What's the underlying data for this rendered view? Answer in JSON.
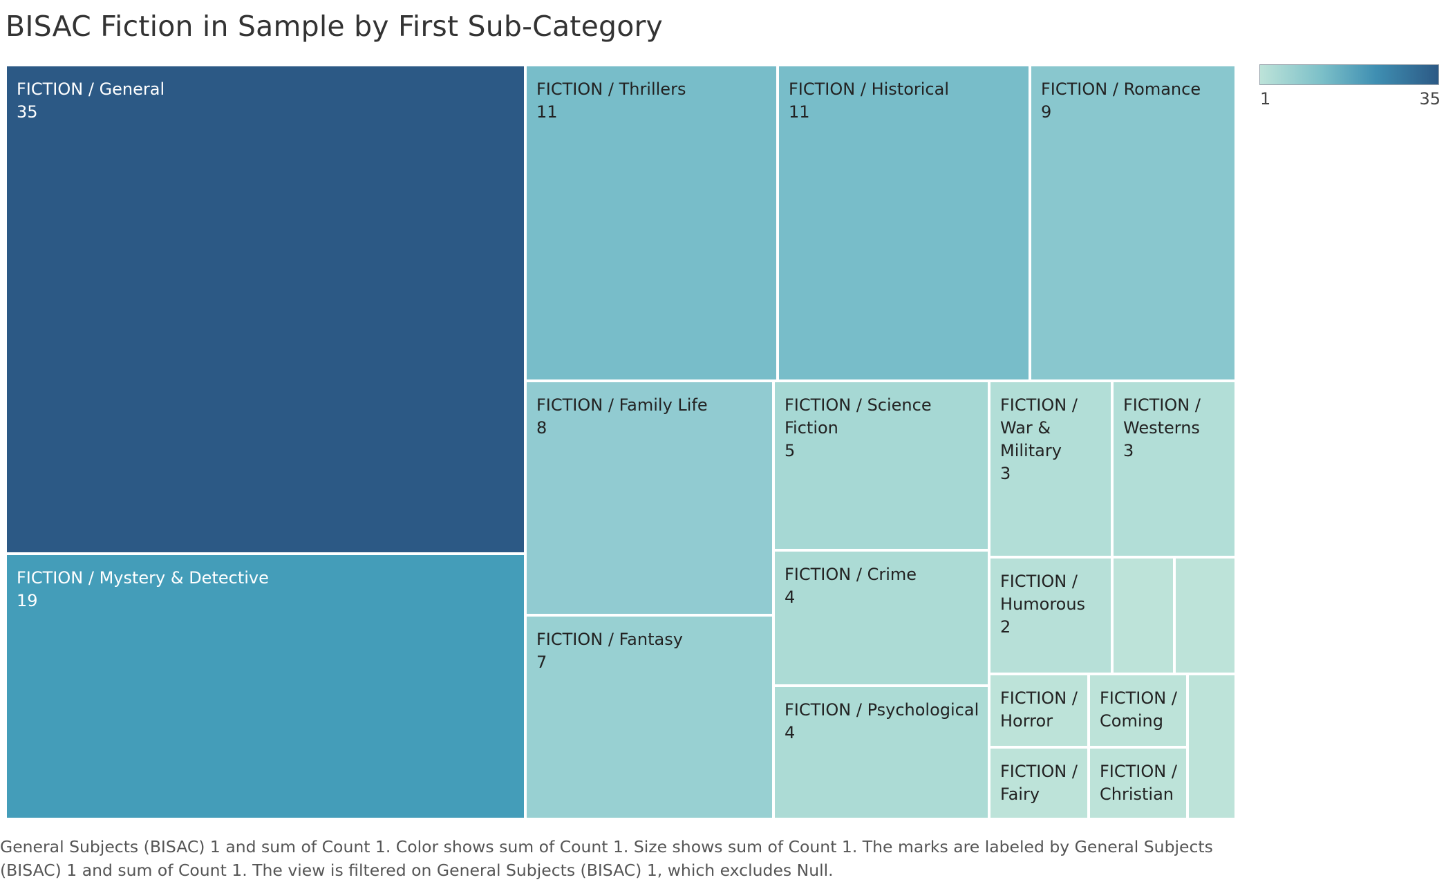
{
  "title": "BISAC Fiction in Sample by First Sub-Category",
  "caption": "General Subjects (BISAC) 1 and sum of Count 1.  Color shows sum of Count 1.  Size shows sum of Count 1.  The marks are labeled by General Subjects (BISAC) 1 and sum of Count 1. The view is filtered on General Subjects (BISAC) 1, which excludes Null.",
  "legend": {
    "min_label": "1",
    "max_label": "35",
    "color_low": "#bde3d9",
    "color_high": "#2c5985"
  },
  "chart_data": {
    "type": "treemap",
    "title": "BISAC Fiction in Sample by First Sub-Category",
    "color_range": [
      1,
      35
    ],
    "items": [
      {
        "label_lines": [
          "FICTION / General"
        ],
        "value": 35
      },
      {
        "label_lines": [
          "FICTION / Mystery & Detective"
        ],
        "value": 19
      },
      {
        "label_lines": [
          "FICTION / Thrillers"
        ],
        "value": 11
      },
      {
        "label_lines": [
          "FICTION / Historical"
        ],
        "value": 11
      },
      {
        "label_lines": [
          "FICTION / Romance"
        ],
        "value": 9
      },
      {
        "label_lines": [
          "FICTION / Family Life"
        ],
        "value": 8
      },
      {
        "label_lines": [
          "FICTION / Fantasy"
        ],
        "value": 7
      },
      {
        "label_lines": [
          "FICTION / Science Fiction"
        ],
        "value": 5
      },
      {
        "label_lines": [
          "FICTION / Crime"
        ],
        "value": 4
      },
      {
        "label_lines": [
          "FICTION / Psychological"
        ],
        "value": 4
      },
      {
        "label_lines": [
          "FICTION /",
          "War &",
          "Military"
        ],
        "value": 3
      },
      {
        "label_lines": [
          "FICTION /",
          "Westerns"
        ],
        "value": 3
      },
      {
        "label_lines": [
          "FICTION /",
          "Humorous"
        ],
        "value": 2
      },
      {
        "label_lines": [],
        "value": 1
      },
      {
        "label_lines": [],
        "value": 1
      },
      {
        "label_lines": [
          "FICTION /",
          "Horror"
        ],
        "value": 1,
        "value_hidden": true
      },
      {
        "label_lines": [
          "FICTION /",
          "Coming"
        ],
        "value": 1,
        "value_hidden": true
      },
      {
        "label_lines": [
          "FICTION /",
          "Fairy"
        ],
        "value": 1,
        "value_hidden": true
      },
      {
        "label_lines": [
          "FICTION /",
          "Christian"
        ],
        "value": 1,
        "value_hidden": true
      },
      {
        "label_lines": [],
        "value": 1
      }
    ]
  }
}
